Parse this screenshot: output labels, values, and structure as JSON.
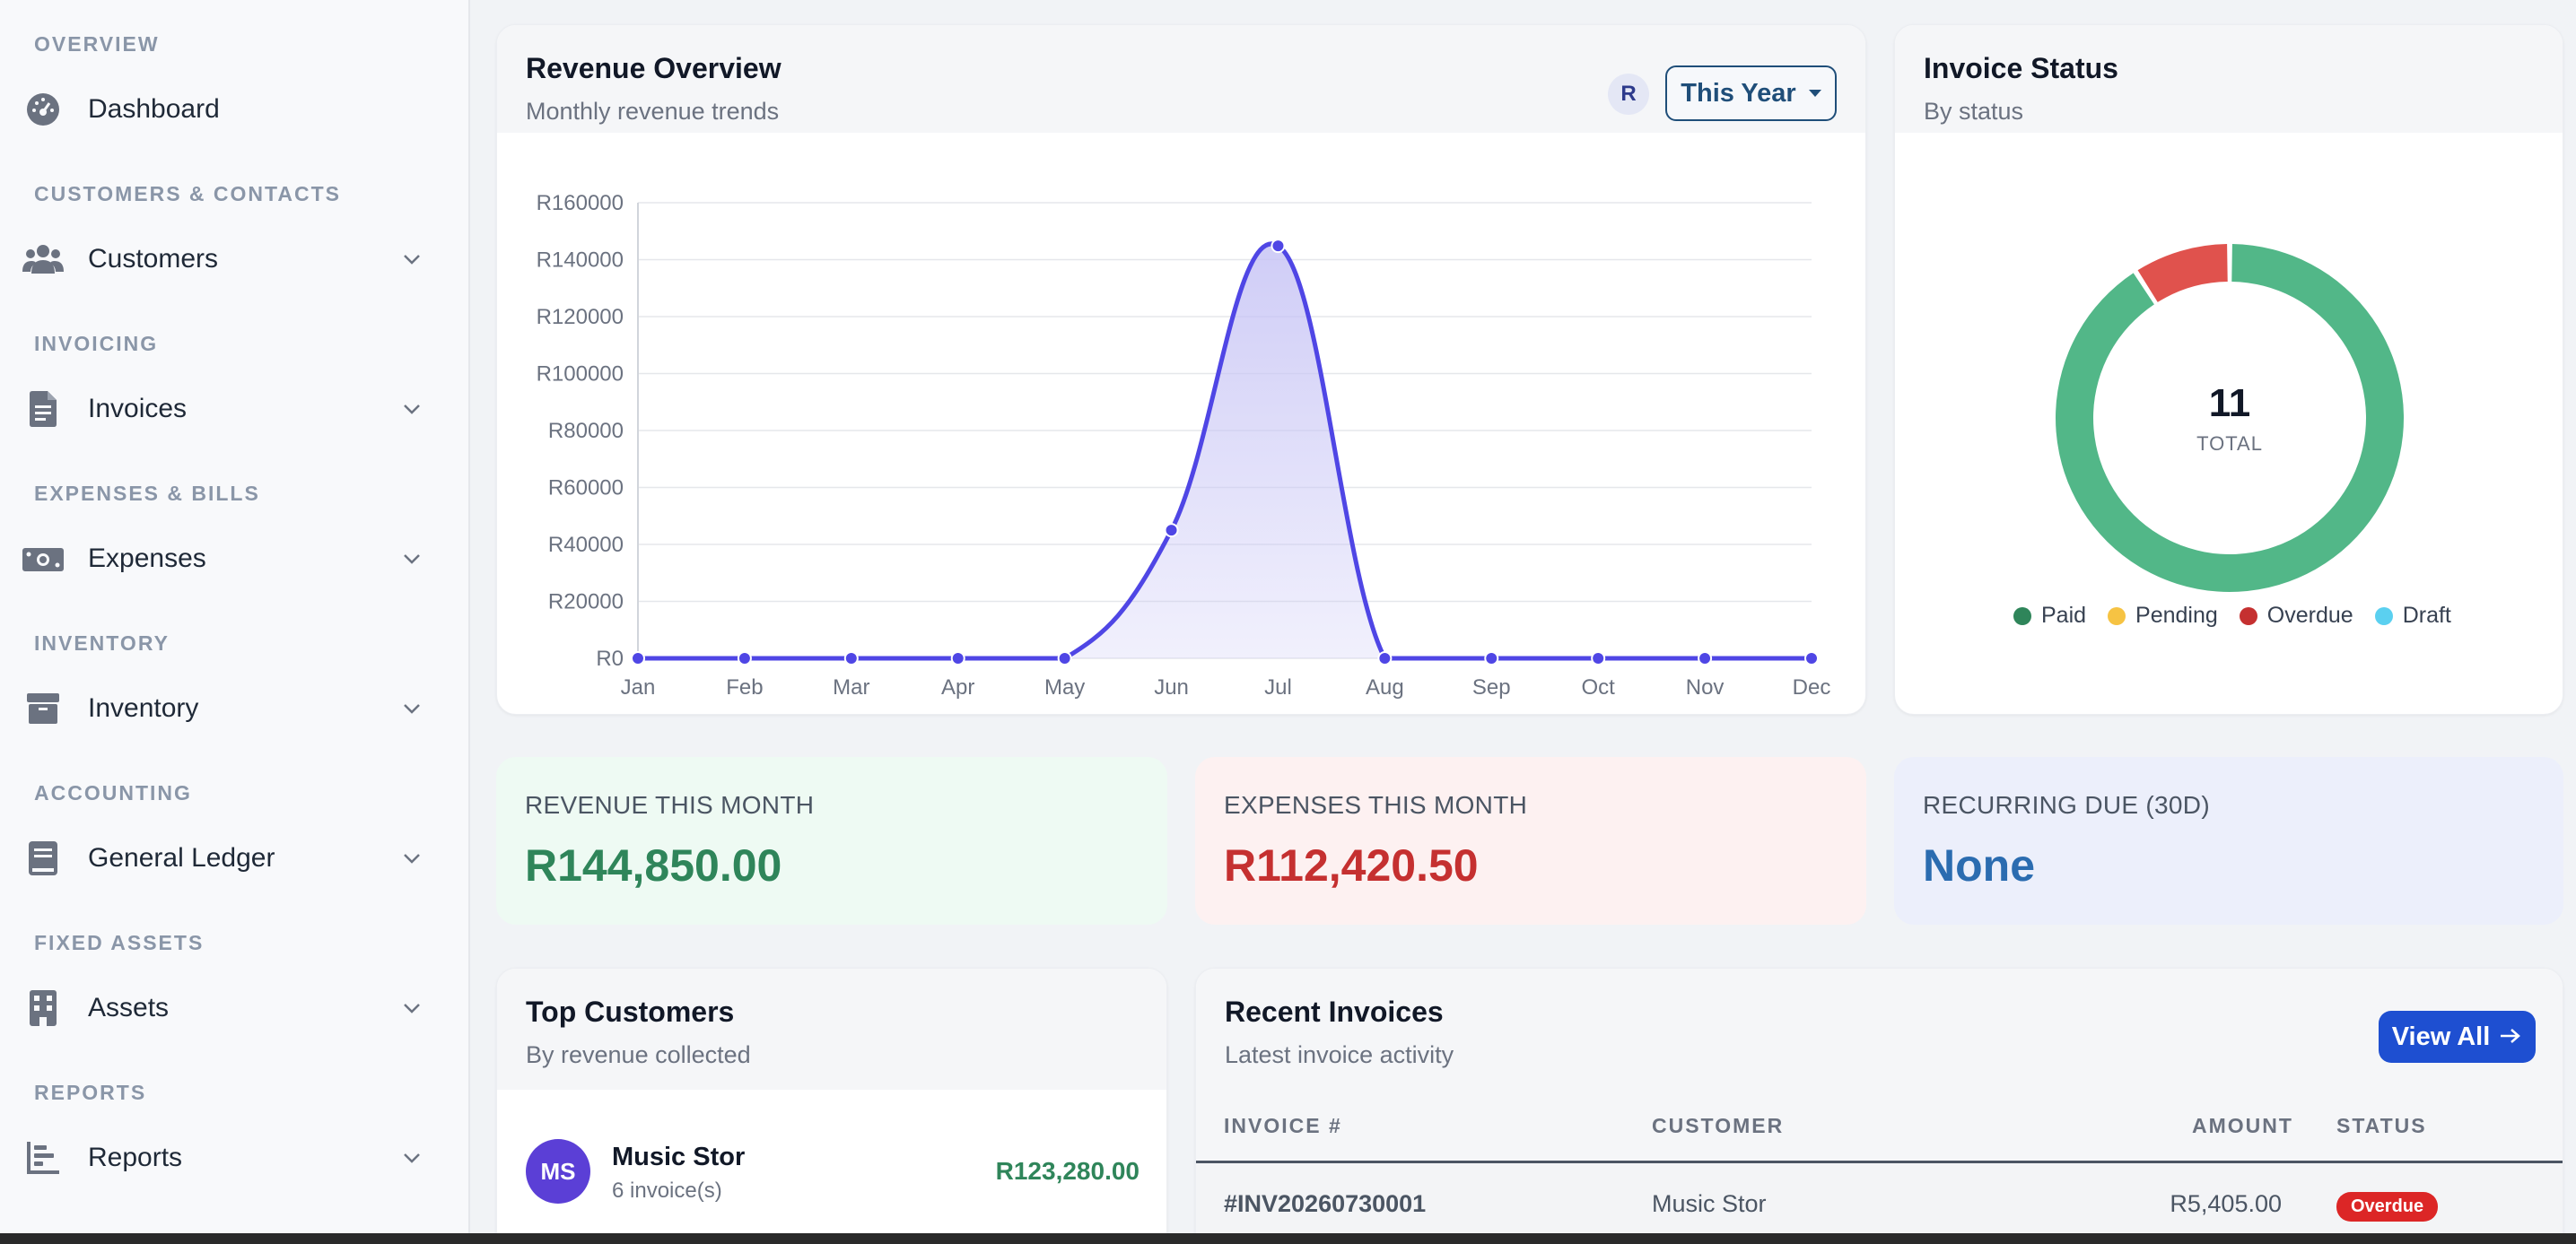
{
  "sidebar": {
    "sections": [
      {
        "title": "OVERVIEW",
        "items": [
          {
            "label": "Dashboard",
            "icon": "dashboard-icon",
            "has_submenu": false
          }
        ]
      },
      {
        "title": "CUSTOMERS & CONTACTS",
        "items": [
          {
            "label": "Customers",
            "icon": "users-icon",
            "has_submenu": true
          }
        ]
      },
      {
        "title": "INVOICING",
        "items": [
          {
            "label": "Invoices",
            "icon": "invoice-icon",
            "has_submenu": true
          }
        ]
      },
      {
        "title": "EXPENSES & BILLS",
        "items": [
          {
            "label": "Expenses",
            "icon": "money-icon",
            "has_submenu": true
          }
        ]
      },
      {
        "title": "INVENTORY",
        "items": [
          {
            "label": "Inventory",
            "icon": "box-icon",
            "has_submenu": true
          }
        ]
      },
      {
        "title": "ACCOUNTING",
        "items": [
          {
            "label": "General Ledger",
            "icon": "book-icon",
            "has_submenu": true
          }
        ]
      },
      {
        "title": "FIXED ASSETS",
        "items": [
          {
            "label": "Assets",
            "icon": "building-icon",
            "has_submenu": true
          }
        ]
      },
      {
        "title": "REPORTS",
        "items": [
          {
            "label": "Reports",
            "icon": "chart-icon",
            "has_submenu": true
          }
        ]
      }
    ]
  },
  "revenue": {
    "title": "Revenue Overview",
    "subtitle": "Monthly revenue trends",
    "currency_badge": "R",
    "period": "This Year"
  },
  "chart_data": [
    {
      "type": "area",
      "title": "Revenue Overview",
      "categories": [
        "Jan",
        "Feb",
        "Mar",
        "Apr",
        "May",
        "Jun",
        "Jul",
        "Aug",
        "Sep",
        "Oct",
        "Nov",
        "Dec"
      ],
      "values": [
        0,
        0,
        0,
        0,
        0,
        45000,
        144850,
        0,
        0,
        0,
        0,
        0
      ],
      "ylim": [
        0,
        160000
      ],
      "yticks": [
        0,
        20000,
        40000,
        60000,
        80000,
        100000,
        120000,
        140000,
        160000
      ],
      "ytick_prefix": "R",
      "grid": true,
      "line_color": "#4f46e5",
      "fill_color": "#c7c4f5"
    },
    {
      "type": "pie",
      "title": "Invoice Status",
      "labels": [
        "Paid",
        "Pending",
        "Overdue",
        "Draft"
      ],
      "values": [
        10,
        0,
        1,
        0
      ],
      "colors": [
        "#52b788",
        "#f6c343",
        "#e0524d",
        "#5bd0f0"
      ],
      "legend_colors": [
        "#2f855a",
        "#f6c343",
        "#c53030",
        "#5bd0f0"
      ],
      "center_value": "11",
      "center_label": "TOTAL",
      "legend": "bottom"
    }
  ],
  "invoice_status": {
    "title": "Invoice Status",
    "subtitle": "By status"
  },
  "stats": [
    {
      "label": "REVENUE THIS MONTH",
      "value": "R144,850.00",
      "color": "#2f855a",
      "bg": "#eefaf3"
    },
    {
      "label": "EXPENSES THIS MONTH",
      "value": "R112,420.50",
      "color": "#c53030",
      "bg": "#fdf1f1"
    },
    {
      "label": "RECURRING DUE (30D)",
      "value": "None",
      "color": "#2b6cb0",
      "bg": "#eceffb"
    }
  ],
  "top_customers": {
    "title": "Top Customers",
    "subtitle": "By revenue collected",
    "rows": [
      {
        "initials": "MS",
        "name": "Music Stor",
        "invoices": "6 invoice(s)",
        "amount": "R123,280.00"
      }
    ]
  },
  "recent_invoices": {
    "title": "Recent Invoices",
    "subtitle": "Latest invoice activity",
    "view_all": "View All",
    "columns": [
      "INVOICE #",
      "CUSTOMER",
      "AMOUNT",
      "STATUS"
    ],
    "rows": [
      {
        "invoice": "#INV20260730001",
        "customer": "Music Stor",
        "amount": "R5,405.00",
        "status": "Overdue"
      }
    ]
  }
}
